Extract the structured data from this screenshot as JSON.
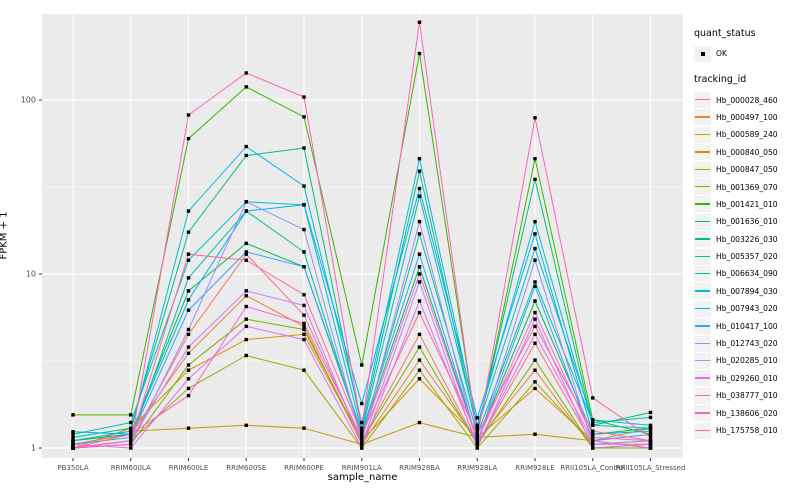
{
  "chart_data": {
    "type": "line",
    "title": "",
    "xlabel": "sample_name",
    "ylabel": "FPKM + 1",
    "y_scale": "log10",
    "y_ticks": [
      1,
      10,
      100
    ],
    "y_minor": [
      3.162,
      31.62,
      316.2
    ],
    "ylim": [
      1,
      320
    ],
    "grid": "on",
    "legend_position": "right",
    "panel_bg": "#EBEBEB",
    "grid_color": "#FFFFFF",
    "tick_text_color": "#4D4D4D",
    "point_color": "#000000",
    "categories": [
      "PB350LA",
      "RRIM600LA",
      "RRIM600LE",
      "RRIM600SE",
      "RRIM600PE",
      "RRIM901LA",
      "RRIM928BA",
      "RRIM928LA",
      "RRIM928LE",
      "RRII105LA_Control",
      "RRII105LA_Stressed"
    ],
    "series": [
      {
        "name": "Hb_000028_460",
        "color": "#F8766D",
        "values": [
          1.0,
          1.1,
          4.5,
          13.0,
          5.8,
          1.1,
          4.5,
          1.05,
          4.0,
          1.05,
          1.05
        ]
      },
      {
        "name": "Hb_000497_100",
        "color": "#EA8331",
        "values": [
          1.05,
          1.2,
          3.5,
          7.5,
          5.0,
          1.05,
          3.2,
          1.1,
          2.8,
          1.0,
          1.05
        ]
      },
      {
        "name": "Hb_000589_240",
        "color": "#D89000",
        "values": [
          1.0,
          1.3,
          2.8,
          4.2,
          4.5,
          1.1,
          2.5,
          1.15,
          2.2,
          1.1,
          1.0
        ]
      },
      {
        "name": "Hb_000840_050",
        "color": "#C09B00",
        "values": [
          1.1,
          1.25,
          1.3,
          1.35,
          1.3,
          1.05,
          1.4,
          1.15,
          1.2,
          1.1,
          1.3
        ]
      },
      {
        "name": "Hb_000847_050",
        "color": "#A3A500",
        "values": [
          1.0,
          1.1,
          2.2,
          3.4,
          2.8,
          1.0,
          2.8,
          1.0,
          2.4,
          1.05,
          1.1
        ]
      },
      {
        "name": "Hb_001369_070",
        "color": "#7CAE00",
        "values": [
          1.0,
          1.05,
          3.0,
          5.5,
          4.8,
          1.1,
          3.8,
          1.05,
          3.2,
          1.0,
          1.0
        ]
      },
      {
        "name": "Hb_001421_010",
        "color": "#39B600",
        "values": [
          1.55,
          1.55,
          60,
          119,
          80,
          3.0,
          185,
          1.2,
          46,
          1.45,
          1.2
        ]
      },
      {
        "name": "Hb_001636_010",
        "color": "#00BB4E",
        "values": [
          1.1,
          1.2,
          8.0,
          15.0,
          11.0,
          1.2,
          11.0,
          1.1,
          7.0,
          1.2,
          1.3
        ]
      },
      {
        "name": "Hb_003226_030",
        "color": "#00BF7D",
        "values": [
          1.15,
          1.3,
          17.4,
          48,
          53,
          1.3,
          39,
          1.25,
          35,
          1.35,
          1.6
        ]
      },
      {
        "name": "Hb_005357_020",
        "color": "#00C1A3",
        "values": [
          1.0,
          1.1,
          9.5,
          23,
          13.4,
          1.15,
          17,
          1.2,
          9.0,
          1.4,
          1.5
        ]
      },
      {
        "name": "Hb_006634_090",
        "color": "#00BFC4",
        "values": [
          1.2,
          1.4,
          12.0,
          26,
          25,
          1.25,
          28,
          1.3,
          14,
          1.45,
          1.35
        ]
      },
      {
        "name": "Hb_007894_030",
        "color": "#00BAE0",
        "values": [
          1.1,
          1.25,
          23,
          54,
          32,
          1.4,
          46,
          1.35,
          20,
          1.35,
          1.3
        ]
      },
      {
        "name": "Hb_007943_020",
        "color": "#00B0F6",
        "values": [
          1.24,
          1.2,
          7.1,
          23,
          25,
          1.8,
          31,
          1.49,
          17,
          1.2,
          1.25
        ]
      },
      {
        "name": "Hb_010417_100",
        "color": "#35A2FF",
        "values": [
          1.05,
          1.15,
          6.2,
          13.4,
          11.0,
          1.24,
          13,
          1.1,
          8.5,
          1.1,
          1.2
        ]
      },
      {
        "name": "Hb_012743_020",
        "color": "#9590FF",
        "values": [
          1.0,
          1.05,
          4.8,
          26,
          18,
          1.1,
          20,
          1.05,
          12,
          1.05,
          1.1
        ]
      },
      {
        "name": "Hb_020285_010",
        "color": "#C77CFF",
        "values": [
          1.0,
          1.1,
          3.8,
          8.0,
          6.6,
          1.05,
          9.0,
          1.0,
          5.5,
          1.0,
          1.05
        ]
      },
      {
        "name": "Hb_029260_010",
        "color": "#E76BF3",
        "values": [
          1.05,
          1.0,
          2.5,
          5.0,
          4.2,
          1.0,
          7.0,
          1.05,
          4.5,
          1.1,
          1.0
        ]
      },
      {
        "name": "Hb_038777_010",
        "color": "#FA62DB",
        "values": [
          1.0,
          1.2,
          2.0,
          6.5,
          5.2,
          1.15,
          10.0,
          1.1,
          6.0,
          1.15,
          1.1
        ]
      },
      {
        "name": "Hb_138606_020",
        "color": "#FF62BC",
        "values": [
          1.0,
          1.05,
          82,
          143,
          104,
          1.3,
          280,
          1.15,
          79,
          1.94,
          1.15
        ]
      },
      {
        "name": "Hb_175758_010",
        "color": "#FF6A98",
        "values": [
          1.0,
          1.1,
          13.0,
          12.0,
          7.6,
          1.2,
          6.0,
          1.2,
          5.0,
          1.25,
          1.1
        ]
      }
    ]
  },
  "legend": {
    "quant_status_title": "quant_status",
    "quant_status_items": [
      {
        "label": "OK",
        "marker": "black-square-point"
      }
    ],
    "tracking_id_title": "tracking_id"
  },
  "axes": {
    "x_title": "sample_name",
    "y_title": "FPKM + 1"
  }
}
